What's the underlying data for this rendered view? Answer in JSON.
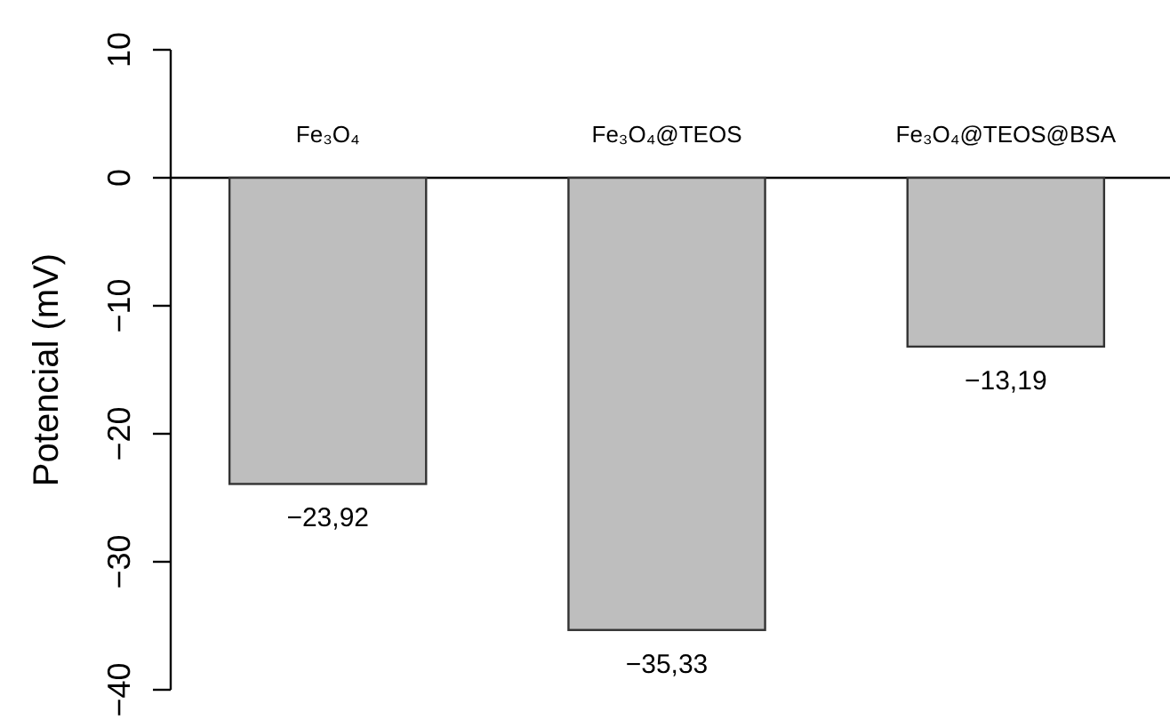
{
  "chart_data": {
    "type": "bar",
    "ylabel": "Potencial (mV)",
    "categories": [
      "Fe₃O₄",
      "Fe₃O₄@TEOS",
      "Fe₃O₄@TEOS@BSA"
    ],
    "values": [
      -23.92,
      -35.33,
      -13.19
    ],
    "value_labels": [
      "−23,92",
      "−35,33",
      "−13,19"
    ],
    "color": "#bebebe",
    "ylim": [
      -40,
      10
    ],
    "yticks": [
      {
        "value": -40,
        "label": "−40"
      },
      {
        "value": -30,
        "label": "−30"
      },
      {
        "value": -20,
        "label": "−20"
      },
      {
        "value": -10,
        "label": "−10"
      },
      0,
      10
    ],
    "grid": false
  }
}
